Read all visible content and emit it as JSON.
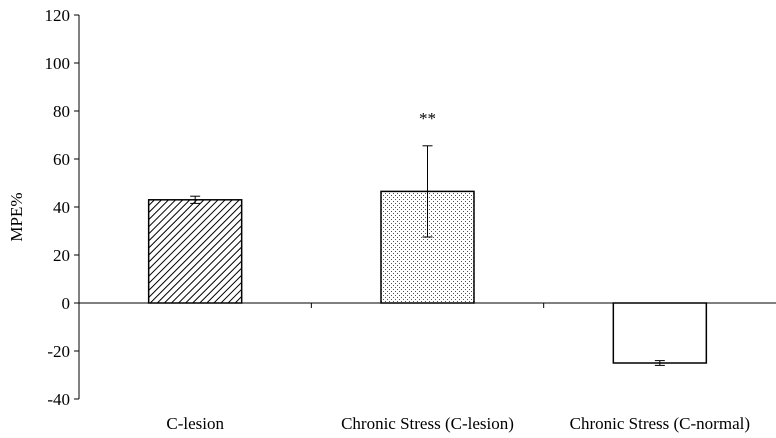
{
  "chart_data": {
    "type": "bar",
    "ylabel": "MPE%",
    "xlabel": "",
    "ylim": [
      -40,
      120
    ],
    "yticks": [
      -40,
      -20,
      0,
      20,
      40,
      60,
      80,
      100,
      120
    ],
    "grid": false,
    "categories": [
      "C-lesion",
      "Chronic Stress (C-lesion)",
      "Chronic Stress (C-normal)"
    ],
    "values": [
      43,
      46.5,
      -25
    ],
    "errors": [
      1.5,
      19,
      1
    ],
    "patterns": [
      "diagonal-hatch",
      "dots",
      "none"
    ],
    "annotations": [
      "",
      "**",
      ""
    ]
  }
}
